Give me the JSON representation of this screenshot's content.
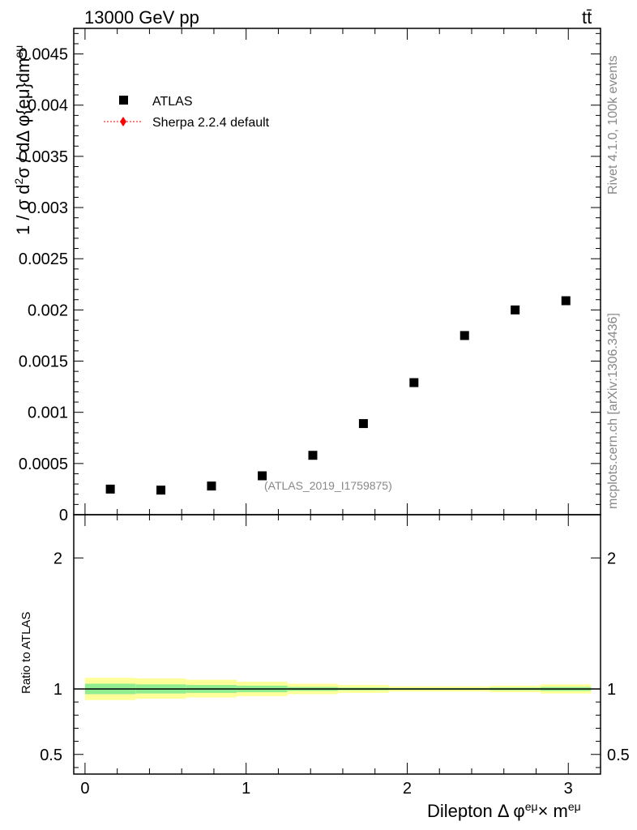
{
  "header": {
    "left": "13000 GeV pp",
    "right": "tt̄"
  },
  "side": {
    "rivet": "Rivet 4.1.0,  100k events",
    "mcplots": "mcplots.cern.ch [arXiv:1306.3436]"
  },
  "watermark": "(ATLAS_2019_I1759875)",
  "legend": [
    {
      "label": "ATLAS",
      "color": "#000000",
      "marker": "square"
    },
    {
      "label": "Sherpa 2.2.4 default",
      "color": "#ff0000",
      "marker": "diamond"
    }
  ],
  "chart_data": [
    {
      "type": "scatter",
      "ylabel": "1 / σ  d²σ / dΔ φ{eμ}dm^{eμ}",
      "ylim": [
        0,
        0.00475
      ],
      "yticks": [
        0,
        0.0005,
        0.001,
        0.0015,
        0.002,
        0.0025,
        0.003,
        0.0035,
        0.004,
        0.0045
      ],
      "yticklabels": [
        "0",
        "0.0005",
        "0.001",
        "0.0015",
        "0.002",
        "0.0025",
        "0.003",
        "0.0035",
        "0.004",
        "0.0045"
      ],
      "xlim": [
        -0.07,
        3.2
      ],
      "series": [
        {
          "name": "ATLAS",
          "x": [
            0.157,
            0.471,
            0.785,
            1.1,
            1.414,
            1.728,
            2.042,
            2.356,
            2.67,
            2.985
          ],
          "y": [
            0.00025,
            0.00024,
            0.00028,
            0.00038,
            0.00058,
            0.00089,
            0.00129,
            0.00175,
            0.002,
            0.00209
          ]
        }
      ]
    },
    {
      "type": "area",
      "ylabel": "Ratio to ATLAS",
      "xlabel": "Dilepton Δ φ^{eμ}× m^{eμ}",
      "ylim": [
        0.35,
        2.33
      ],
      "yticks": [
        0.5,
        1,
        2
      ],
      "yticklabels": [
        "0.5",
        "1",
        "2"
      ],
      "xticks": [
        0,
        1,
        2,
        3
      ],
      "xticklabels": [
        "0",
        "1",
        "2",
        "3"
      ],
      "bins": [
        0,
        0.314,
        0.628,
        0.942,
        1.257,
        1.571,
        1.885,
        2.199,
        2.513,
        2.827,
        3.1416
      ],
      "band_inner": [
        [
          0.96,
          1.04
        ],
        [
          0.965,
          1.035
        ],
        [
          0.97,
          1.03
        ],
        [
          0.975,
          1.025
        ],
        [
          0.985,
          1.015
        ],
        [
          0.99,
          1.01
        ],
        [
          0.993,
          1.007
        ],
        [
          0.993,
          1.007
        ],
        [
          0.99,
          1.01
        ],
        [
          0.985,
          1.015
        ]
      ],
      "band_outer": [
        [
          0.915,
          1.085
        ],
        [
          0.925,
          1.08
        ],
        [
          0.935,
          1.07
        ],
        [
          0.945,
          1.055
        ],
        [
          0.96,
          1.04
        ],
        [
          0.97,
          1.03
        ],
        [
          0.98,
          1.02
        ],
        [
          0.98,
          1.02
        ],
        [
          0.975,
          1.025
        ],
        [
          0.965,
          1.035
        ]
      ],
      "inner_color": "#90ee90",
      "outer_color": "#ffff99",
      "line": 1.0
    }
  ]
}
